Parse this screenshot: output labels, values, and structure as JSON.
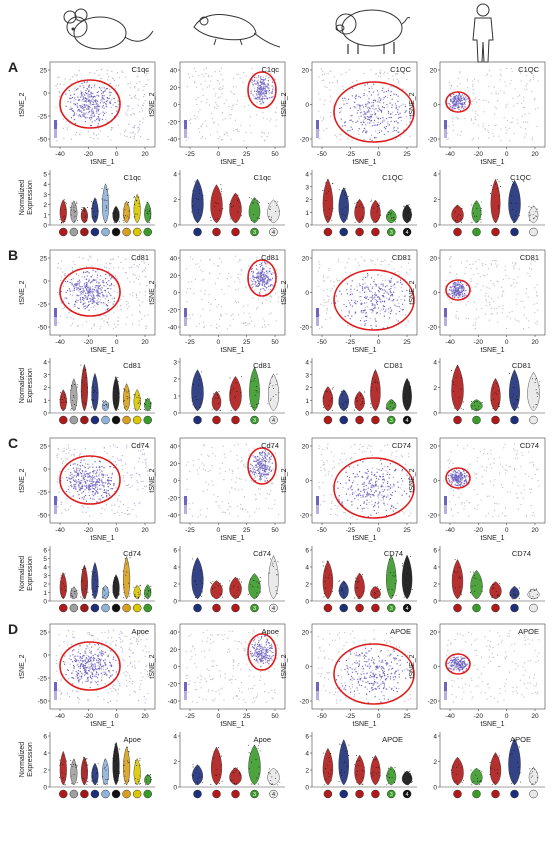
{
  "figure": {
    "species_icons": [
      "mouse-icon",
      "rat-icon",
      "pig-icon",
      "human-icon"
    ],
    "colors": {
      "dot": "#6f63c0",
      "dot_light": "#b7b0de",
      "dot_grey": "#c4c4c4",
      "outline": "#e01b1b",
      "cluster_blue": "#1d2f7a",
      "cluster_red": "#b01a1a",
      "cluster_grey": "#a0a0a0"
    },
    "rows": [
      {
        "letter": "A",
        "genes": [
          "C1qc",
          "C1qc",
          "C1QC",
          "C1QC"
        ],
        "tsne_y_ticks": [
          [
            "25",
            "0",
            "-25",
            "-50"
          ],
          [
            "40",
            "20",
            "0",
            "-20",
            "-40"
          ],
          [
            "20",
            "0",
            "-20"
          ],
          [
            "20",
            "0",
            "-20"
          ]
        ],
        "violin_y_ticks": [
          [
            "5",
            "4",
            "3",
            "2",
            "1",
            "0"
          ],
          [
            "4",
            "2",
            "0"
          ],
          [
            "4",
            "3",
            "2",
            "1",
            "0"
          ],
          [
            "4",
            "2",
            "0"
          ]
        ]
      },
      {
        "letter": "B",
        "genes": [
          "Cd81",
          "Cd81",
          "CD81",
          "CD81"
        ],
        "tsne_y_ticks": [
          [
            "25",
            "0",
            "-25",
            "-50"
          ],
          [
            "40",
            "20",
            "0",
            "-20",
            "-40"
          ],
          [
            "20",
            "0",
            "-20"
          ],
          [
            "20",
            "0",
            "-20"
          ]
        ],
        "violin_y_ticks": [
          [
            "4",
            "3",
            "2",
            "1",
            "0"
          ],
          [
            "3",
            "2",
            "1",
            "0"
          ],
          [
            "4",
            "3",
            "2",
            "1",
            "0"
          ],
          [
            "4",
            "2",
            "0"
          ]
        ]
      },
      {
        "letter": "C",
        "genes": [
          "Cd74",
          "Cd74",
          "CD74",
          "CD74"
        ],
        "tsne_y_ticks": [
          [
            "25",
            "0",
            "-25",
            "-50"
          ],
          [
            "40",
            "20",
            "0",
            "-20",
            "-40"
          ],
          [
            "20",
            "0",
            "-20"
          ],
          [
            "20",
            "0",
            "-20"
          ]
        ],
        "violin_y_ticks": [
          [
            "6",
            "5",
            "4",
            "3",
            "2",
            "1",
            "0"
          ],
          [
            "6",
            "4",
            "2",
            "0"
          ],
          [
            "6",
            "4",
            "2",
            "0"
          ],
          [
            "6",
            "4",
            "2",
            "0"
          ]
        ]
      },
      {
        "letter": "D",
        "genes": [
          "Apoe",
          "Apoe",
          "APOE",
          "APOE"
        ],
        "tsne_y_ticks": [
          [
            "25",
            "0",
            "-25",
            "-50"
          ],
          [
            "40",
            "20",
            "0",
            "-20",
            "-40"
          ],
          [
            "20",
            "0",
            "-20"
          ],
          [
            "20",
            "0",
            "-20"
          ]
        ],
        "violin_y_ticks": [
          [
            "6",
            "4",
            "2",
            "0"
          ],
          [
            "4",
            "2",
            "0"
          ],
          [
            "6",
            "4",
            "2",
            "0"
          ],
          [
            "4",
            "2",
            "0"
          ]
        ]
      }
    ],
    "tsne_x_ticks": [
      [
        "-40",
        "-20",
        "0",
        "20"
      ],
      [
        "-25",
        "0",
        "25",
        "50"
      ],
      [
        "-50",
        "-25",
        "0",
        "25"
      ],
      [
        "-40",
        "-20",
        "0",
        "20"
      ]
    ],
    "tsne_xlabel": "tSNE_1",
    "tsne_ylabel": "tSNE_2",
    "violin_ylabel_line1": "Normalized",
    "violin_ylabel_line2": "Expression",
    "violin_clusters": [
      {
        "colors": [
          "#b01a1a",
          "#a0a0a0",
          "#a01818",
          "#1d2f7a",
          "#8fb3d9",
          "#111111",
          "#d9a020",
          "#d9c800",
          "#3a9a2a"
        ],
        "labels": []
      },
      {
        "colors": [
          "#1d2f7a",
          "#b01a1a",
          "#b01a1a",
          "#3a9a2a",
          "#e8e8e8"
        ],
        "labels": [
          "",
          "",
          "",
          "3",
          "4"
        ]
      },
      {
        "colors": [
          "#b01a1a",
          "#1d2f7a",
          "#b01a1a",
          "#b01a1a",
          "#3a9a2a",
          "#111111"
        ],
        "labels": [
          "",
          "",
          "",
          "",
          "3",
          "4"
        ]
      },
      {
        "colors": [
          "#b01a1a",
          "#3a9a2a",
          "#b01a1a",
          "#1d2f7a",
          "#e8e8e8"
        ],
        "labels": []
      }
    ]
  }
}
